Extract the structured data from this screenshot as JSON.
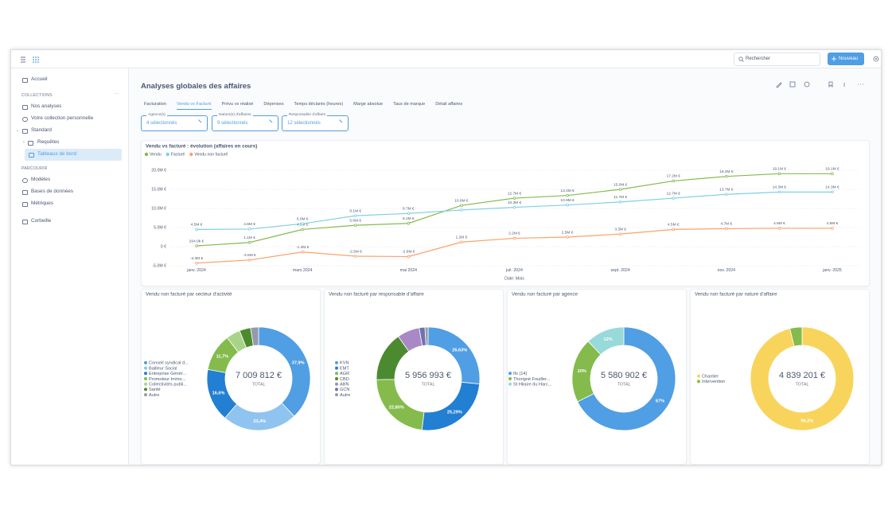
{
  "topbar": {
    "search": "Rechercher",
    "new_button": "Nouveau"
  },
  "sidebar": {
    "home": "Accueil",
    "collections_title": "COLLECTIONS",
    "our_analyses": "Nos analyses",
    "personal": "Votre collection personnelle",
    "standard": "Standard",
    "queries": "Requêtes",
    "dashboards": "Tableaux de bord",
    "browse_title": "PARCOURIR",
    "models": "Modèles",
    "databases": "Bases de données",
    "metrics": "Métriques",
    "trash": "Corbeille"
  },
  "dashboard": {
    "title": "Analyses globales des affaires",
    "tabs": [
      "Facturation",
      "Vendu vs Facturé",
      "Prévu vs réalisé",
      "Dépenses",
      "Temps déclarés (heures)",
      "Marge absolue",
      "Taux de marque",
      "Détail affaires"
    ],
    "active_tab": 1,
    "filters": [
      {
        "label": "Agence(s)",
        "value": "4 sélectionnés"
      },
      {
        "label": "Nature(s) d'affaires",
        "value": "9 sélectionnés"
      },
      {
        "label": "Responsable d'affaire",
        "value": "12 sélectionnés"
      }
    ]
  },
  "chart_data": [
    {
      "type": "line",
      "title": "Vendu vs facturé : évolution (affaires en cours)",
      "categories": [
        "janv. 2024",
        null,
        "mars 2024",
        null,
        "mai 2024",
        null,
        "juil. 2024",
        null,
        "sept. 2024",
        null,
        "nov. 2024",
        null,
        "janv. 2025"
      ],
      "xlabel": "Date: Mois",
      "series": [
        {
          "name": "Vendu",
          "color": "#84bb4c",
          "values": [
            0.204,
            1.1,
            4.5,
            5.6,
            6.1,
            10.8,
            12.7,
            13.4,
            15.0,
            17.2,
            18.4,
            19.1,
            19.1
          ],
          "value_labels": [
            "204.0k €",
            "1.1M €",
            "4.5M €",
            "5.6M €",
            "6.1M €",
            "10.8M €",
            "12.7M €",
            "13.4M €",
            "15.0M €",
            "17.2M €",
            "18.4M €",
            "19.1M €",
            "19.1M €"
          ]
        },
        {
          "name": "Facturé",
          "color": "#7fcfe3",
          "values": [
            4.5,
            4.6,
            6.0,
            8.1,
            8.7,
            9.6,
            10.3,
            10.9,
            11.7,
            12.7,
            13.7,
            14.3,
            14.3
          ],
          "value_labels": [
            "4.5M €",
            "4.6M €",
            "6.0M €",
            "8.1M €",
            "8.7M €",
            null,
            "10.3M €",
            "10.9M €",
            "11.7M €",
            "12.7M €",
            "13.7M €",
            "14.3M €",
            "14.3M €"
          ]
        },
        {
          "name": "Vendu non facturé",
          "color": "#f9a26b",
          "values": [
            -4.3,
            -3.5,
            -1.4,
            -2.5,
            -2.6,
            1.2,
            2.2,
            2.5,
            3.3,
            4.5,
            4.7,
            4.8,
            4.8
          ],
          "value_labels": [
            "-4.3M €",
            "-3.5M €",
            "-1.4M €",
            "-2.5M €",
            "-2.6M €",
            "1.2M €",
            "2.2M €",
            "2.5M €",
            "3.3M €",
            "4.5M €",
            "4.7M €",
            "4.8M €",
            "4.8M €"
          ]
        }
      ],
      "ylim": [
        -6,
        21
      ],
      "yticks": [
        {
          "value": -5,
          "label": "-5.0M €"
        },
        {
          "value": 0,
          "label": "0 €"
        },
        {
          "value": 5,
          "label": "5.0M €"
        },
        {
          "value": 10,
          "label": "10.0M €"
        },
        {
          "value": 15,
          "label": "15.0M €"
        },
        {
          "value": 20,
          "label": "20.0M €"
        }
      ],
      "grid": true
    },
    {
      "type": "donut",
      "title": "Vendu non facturé par secteur d'activité",
      "total": "7 009 812 €",
      "total_label": "TOTAL",
      "categories": [
        "Conseil syndical d...",
        "Bailleur Social",
        "Entreprise Génér...",
        "Promoteur Immo...",
        "Collectivités publi...",
        "Santé",
        "Autre"
      ],
      "values": [
        37.9,
        23.4,
        16.6,
        11.7,
        4.4,
        3.5,
        2.5
      ],
      "value_labels": [
        "37,9%",
        "23,4%",
        "16,6%",
        "11,7%",
        null,
        null,
        null
      ],
      "colors": [
        "#509ee3",
        "#8fc3f0",
        "#227fd2",
        "#84bb4c",
        "#a8d48a",
        "#4c8a2f",
        "#949aab"
      ]
    },
    {
      "type": "donut",
      "title": "Vendu non facturé par responsable d'affaire",
      "total": "5 956 993 €",
      "total_label": "TOTAL",
      "categories": [
        "KVN",
        "EMT",
        "AGR",
        "CBD",
        "ABN",
        "GCN",
        "Autre"
      ],
      "values": [
        26.63,
        25.29,
        22.8,
        15.5,
        7.0,
        1.8,
        0.98
      ],
      "value_labels": [
        "26,63%",
        "25,29%",
        "22,80%",
        null,
        null,
        null,
        null
      ],
      "colors": [
        "#509ee3",
        "#227fd2",
        "#84bb4c",
        "#4c8a2f",
        "#a989c5",
        "#7172ad",
        "#949aab"
      ]
    },
    {
      "type": "donut",
      "title": "Vendu non facturé par agence",
      "total": "5 580 902 €",
      "total_label": "TOTAL",
      "categories": [
        "Ifs (14)",
        "Thorigné Fouiller...",
        "St Hilaire du Harc..."
      ],
      "values": [
        67,
        20,
        12
      ],
      "value_labels": [
        "67%",
        "20%",
        "12%"
      ],
      "colors": [
        "#509ee3",
        "#84bb4c",
        "#98d9d9"
      ]
    },
    {
      "type": "donut",
      "title": "Vendu non facturé par nature d'affaire",
      "total": "4 839 201 €",
      "total_label": "TOTAL",
      "categories": [
        "Chantier",
        "Intervention"
      ],
      "values": [
        96.2,
        3.8
      ],
      "value_labels": [
        "96,2%",
        null
      ],
      "colors": [
        "#f9d45c",
        "#84bb4c"
      ]
    }
  ]
}
